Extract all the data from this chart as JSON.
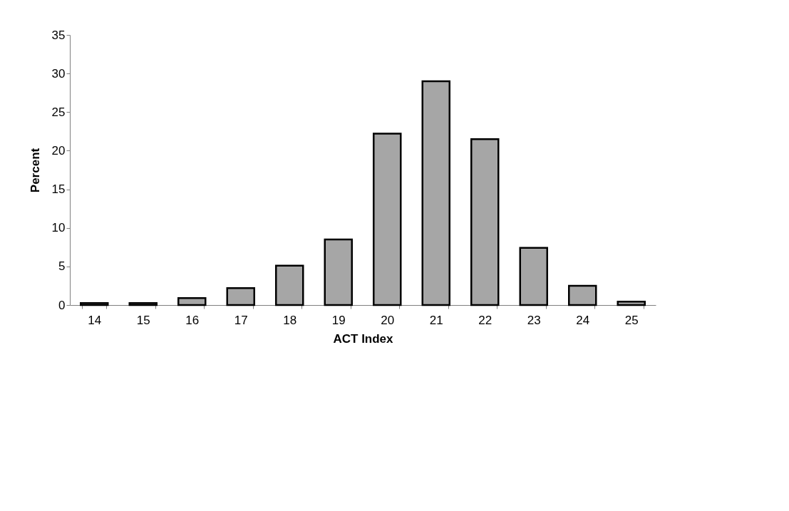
{
  "chart_data": {
    "type": "bar",
    "xlabel": "ACT Index",
    "ylabel": "Percent",
    "categories": [
      "14",
      "15",
      "16",
      "17",
      "18",
      "19",
      "20",
      "21",
      "22",
      "23",
      "24",
      "25"
    ],
    "values": [
      0.25,
      0.25,
      0.9,
      2.2,
      5.1,
      8.5,
      22.2,
      29.0,
      21.5,
      7.4,
      2.5,
      0.45
    ],
    "color": "#a6a6a6",
    "ylim": [
      0,
      35
    ],
    "yticks": [
      0,
      5,
      10,
      15,
      20,
      25,
      30,
      35
    ],
    "grid": false
  }
}
